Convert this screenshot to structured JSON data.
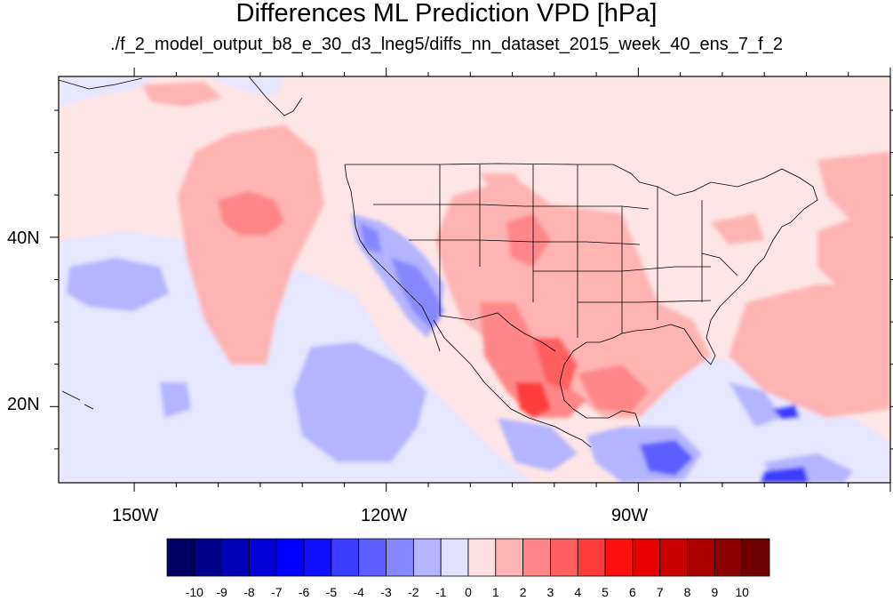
{
  "title": "Differences ML Prediction VPD [hPa]",
  "subtitle": "./f_2_model_output_b8_e_30_d3_lneg5/diffs_nn_dataset_2015_week_40_ens_7_f_2",
  "axes": {
    "lon_labels": [
      "150W",
      "120W",
      "90W"
    ],
    "lat_labels": [
      "40N",
      "20N"
    ],
    "lon_range": [
      -159,
      -60
    ],
    "lat_range": [
      11,
      59
    ]
  },
  "colorbar": {
    "ticks": [
      "-10",
      "-9",
      "-8",
      "-7",
      "-6",
      "-5",
      "-4",
      "-3",
      "-2",
      "-1",
      "0",
      "1",
      "2",
      "3",
      "4",
      "5",
      "6",
      "7",
      "8",
      "9",
      "10"
    ],
    "colors": [
      "#000064",
      "#00008b",
      "#0000b4",
      "#0000d7",
      "#0000ff",
      "#0f0fff",
      "#3c3cff",
      "#5f5fff",
      "#8787ff",
      "#b4b4ff",
      "#e1e1ff",
      "#ffe1e1",
      "#ffb4b4",
      "#ff8787",
      "#ff5f5f",
      "#ff3c3c",
      "#ff0f0f",
      "#e60000",
      "#c80000",
      "#aa0000",
      "#8c0000",
      "#6e0000"
    ]
  }
}
